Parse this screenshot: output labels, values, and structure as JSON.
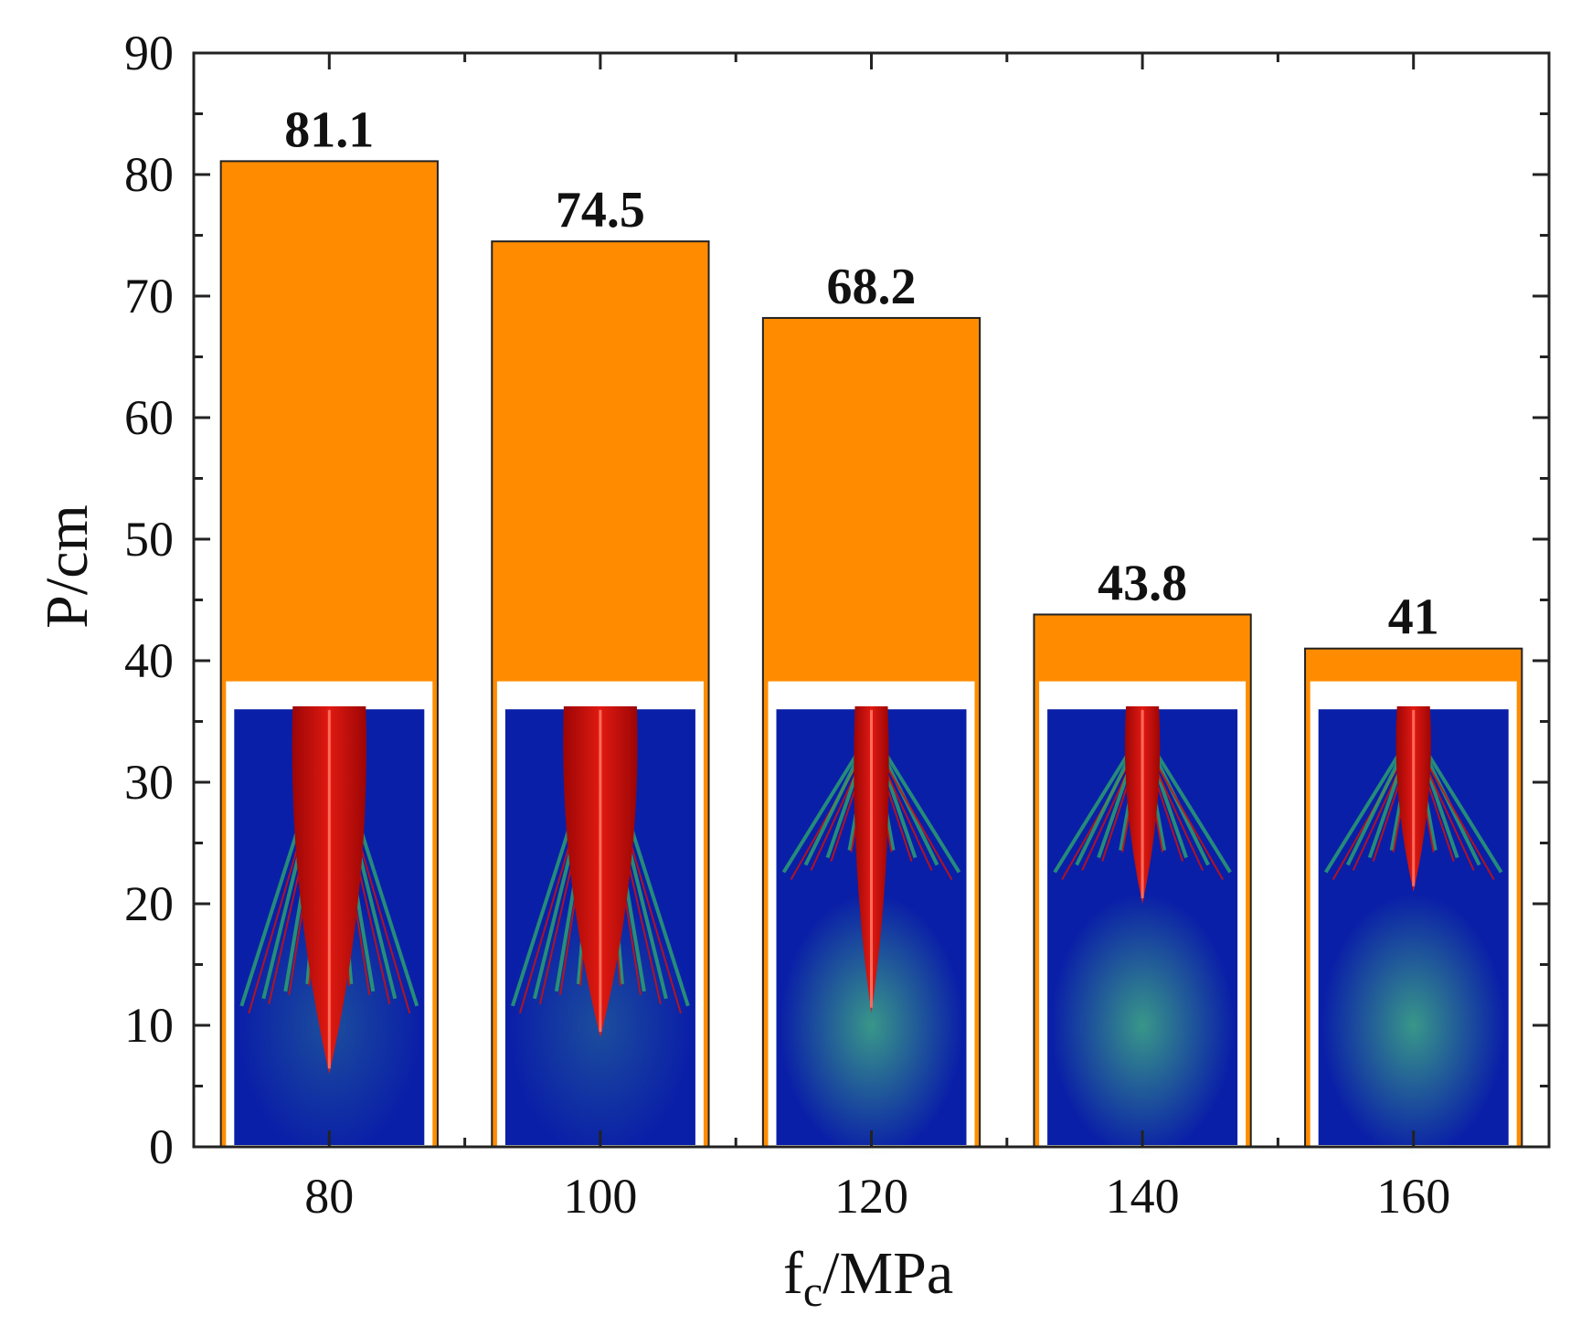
{
  "chart_data": {
    "type": "bar",
    "categories": [
      "80",
      "100",
      "120",
      "140",
      "160"
    ],
    "values": [
      81.1,
      74.5,
      68.2,
      43.8,
      41
    ],
    "value_labels": [
      "81.1",
      "74.5",
      "68.2",
      "43.8",
      "41"
    ],
    "xlabel_main": "f",
    "xlabel_sub": "c",
    "xlabel_rest": "/MPa",
    "ylabel": "P/cm",
    "ylim": [
      0,
      90
    ],
    "yticks": [
      0,
      10,
      20,
      30,
      40,
      50,
      60,
      70,
      80,
      90
    ],
    "bar_color": "#ff8c00",
    "inset_images": [
      {
        "category": "80",
        "description_icon": "damage-contour-image",
        "crater_depth": 6
      },
      {
        "category": "100",
        "description_icon": "damage-contour-image",
        "crater_depth": 9
      },
      {
        "category": "120",
        "description_icon": "damage-contour-image",
        "crater_depth": 11
      },
      {
        "category": "140",
        "description_icon": "damage-contour-image",
        "crater_depth": 20
      },
      {
        "category": "160",
        "description_icon": "damage-contour-image",
        "crater_depth": 21
      }
    ]
  },
  "colors": {
    "contour_blue": "#0a1fa8",
    "contour_green": "#2fb06a",
    "contour_red": "#d0100a",
    "contour_darkred": "#9c0505"
  }
}
